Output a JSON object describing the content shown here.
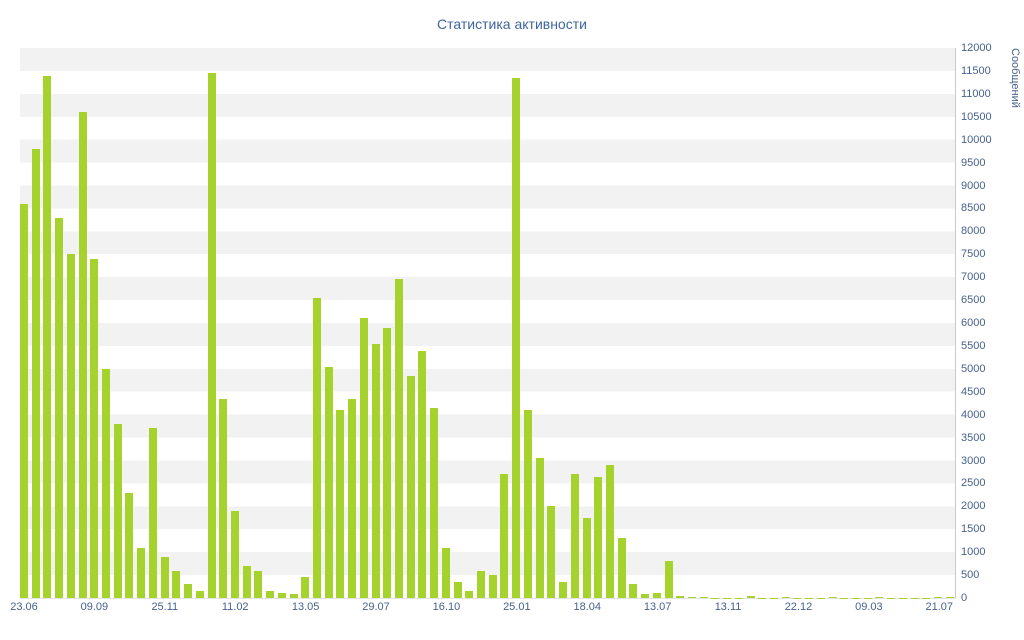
{
  "chart_data": {
    "type": "bar",
    "title": "Статистика активности",
    "ylabel": "Сообщений",
    "xlabel": "",
    "ylim": [
      0,
      12000
    ],
    "y_tick_step": 500,
    "y_ticks": [
      0,
      500,
      1000,
      1500,
      2000,
      2500,
      3000,
      3500,
      4000,
      4500,
      5000,
      5500,
      6000,
      6500,
      7000,
      7500,
      8000,
      8500,
      9000,
      9500,
      10000,
      10500,
      11000,
      11500,
      12000
    ],
    "x_tick_labels": [
      "23.06",
      "09.09",
      "25.11",
      "11.02",
      "13.05",
      "29.07",
      "16.10",
      "25.01",
      "18.04",
      "13.07",
      "13.11",
      "22.12",
      "09.03",
      "21.07"
    ],
    "x_tick_every": 6,
    "values": [
      8600,
      9800,
      11400,
      8300,
      7500,
      10600,
      7400,
      5000,
      3800,
      2300,
      1100,
      3700,
      900,
      600,
      300,
      150,
      11450,
      4350,
      1900,
      700,
      600,
      150,
      100,
      80,
      450,
      6550,
      5050,
      4100,
      4350,
      6100,
      5550,
      5900,
      6950,
      4850,
      5400,
      4150,
      1100,
      350,
      150,
      600,
      500,
      2700,
      11350,
      4100,
      3050,
      2000,
      350,
      2700,
      1750,
      2650,
      2900,
      1300,
      300,
      80,
      100,
      800,
      50,
      20,
      15,
      10,
      10,
      10,
      50,
      10,
      10,
      15,
      10,
      10,
      10,
      30,
      10,
      10,
      10,
      15,
      10,
      10,
      10,
      10,
      30,
      30
    ],
    "bar_color": "#a6d22d",
    "grid": "striped-horizontal-bands",
    "legend": "none"
  },
  "colors": {
    "title_blue": "#3f64a0",
    "axis_label_blue": "#47618c",
    "bar_green": "#a6d22d",
    "stripe_gray": "#f2f2f2",
    "axis_line_gray": "#c9c9c9"
  }
}
